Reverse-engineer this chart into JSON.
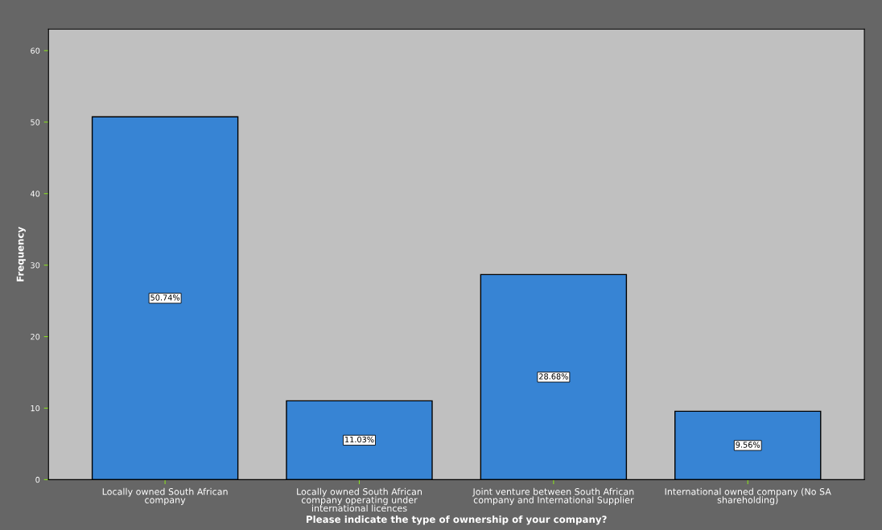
{
  "chart_data": {
    "type": "bar",
    "xlabel": "Please indicate the type of ownership of your company?",
    "ylabel": "Frequency",
    "categories": [
      "Locally owned South African\ncompany",
      "Locally owned South African\ncompany operating under\ninternational licences",
      "Joint venture between South African\ncompany and International Supplier",
      "International owned company (No SA\nshareholding)"
    ],
    "values": [
      50.74,
      11.03,
      28.68,
      9.56
    ],
    "value_labels": [
      "50.74%",
      "11.03%",
      "28.68%",
      "9.56%"
    ],
    "color": "#3784d4",
    "ylim": [
      0,
      63
    ],
    "yticks": [
      0,
      10,
      20,
      30,
      40,
      50,
      60
    ],
    "grid": false
  }
}
